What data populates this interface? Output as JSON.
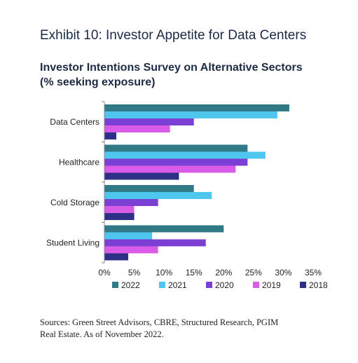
{
  "exhibit_title": "Exhibit 10: Investor Appetite for Data Centers",
  "chart_data": {
    "type": "bar",
    "orientation": "horizontal",
    "title": "Investor Intentions Survey on Alternative Sectors",
    "subtitle": "(% seeking exposure)",
    "categories": [
      "Data Centers",
      "Healthcare",
      "Cold Storage",
      "Student Living"
    ],
    "series": [
      {
        "name": "2022",
        "color": "#2f7a86",
        "values": [
          31,
          24,
          15,
          20
        ]
      },
      {
        "name": "2021",
        "color": "#4fc6ee",
        "values": [
          29,
          27,
          18,
          8
        ]
      },
      {
        "name": "2020",
        "color": "#7b3fd4",
        "values": [
          15,
          24,
          9,
          17
        ]
      },
      {
        "name": "2019",
        "color": "#d95ce8",
        "values": [
          11,
          22,
          5,
          9
        ]
      },
      {
        "name": "2018",
        "color": "#2e2f86",
        "values": [
          2,
          12.5,
          5,
          4
        ]
      }
    ],
    "xlim": [
      0,
      35
    ],
    "xticks": [
      "0%",
      "5%",
      "10%",
      "15%",
      "20%",
      "25%",
      "30%",
      "35%"
    ],
    "xlabel": "",
    "ylabel": "",
    "grid": false,
    "legend": "bottom"
  },
  "source_lines": [
    "Sources: Green Street Advisors, CBRE, Structured Research, PGIM",
    "Real Estate. As of November 2022."
  ]
}
